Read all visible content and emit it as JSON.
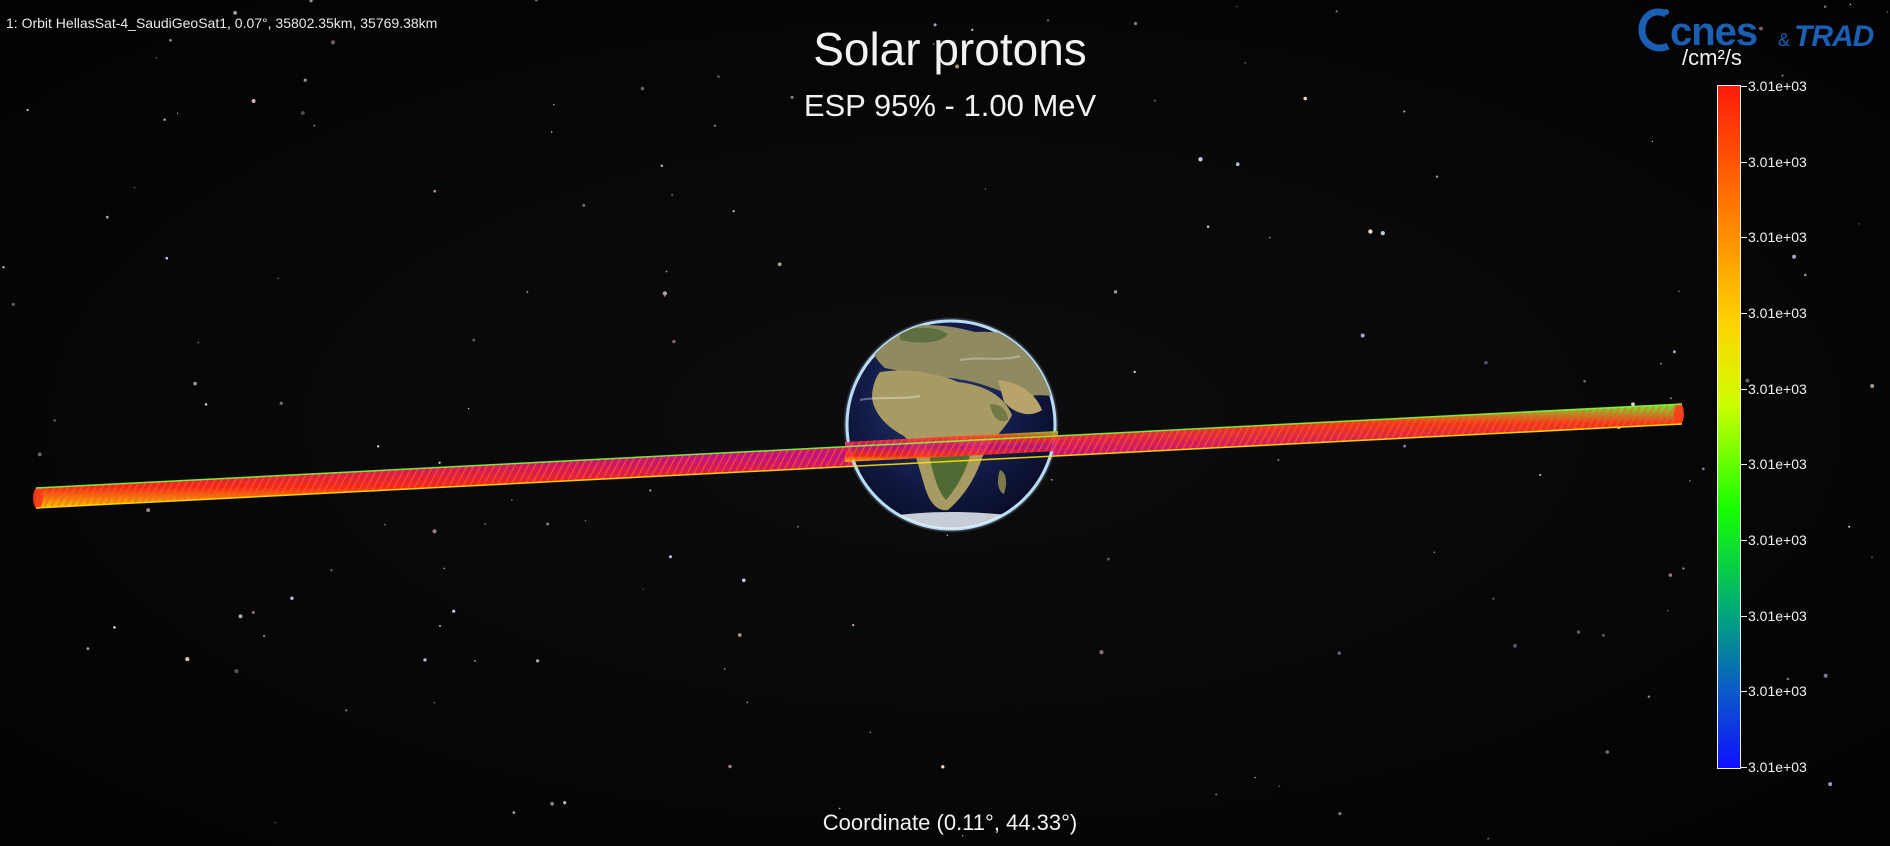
{
  "header": {
    "orbit_info": "1: Orbit HellasSat-4_SaudiGeoSat1, 0.07°, 35802.35km, 35769.38km",
    "title": "Solar protons",
    "subtitle": "ESP 95% - 1.00 MeV"
  },
  "footer": {
    "coordinate": "Coordinate (0.11°, 44.33°)"
  },
  "logo": {
    "cnes": "cnes",
    "amp": "&",
    "trad": "TRAD"
  },
  "colorbar": {
    "unit": "/cm²/s",
    "ticks": [
      "3.01e+03",
      "3.01e+03",
      "3.01e+03",
      "3.01e+03",
      "3.01e+03",
      "3.01e+03",
      "3.01e+03",
      "3.01e+03",
      "3.01e+03",
      "3.01e+03"
    ]
  },
  "colors": {
    "background": "#050505",
    "brand_blue": "#1a5fb4",
    "scale_max": "#ff1a0a",
    "scale_min": "#1010ff"
  },
  "scene": {
    "earth_icon": "earth-globe-icon",
    "orbit_track": "orbit-ribbon"
  }
}
